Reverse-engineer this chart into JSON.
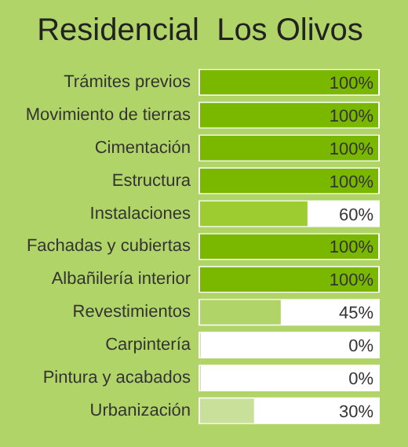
{
  "chart_data": {
    "type": "bar",
    "orientation": "horizontal",
    "title": "Residencial  Los Olivos",
    "categories": [
      "Trámites previos",
      "Movimiento de tierras",
      "Cimentación",
      "Estructura",
      "Instalaciones",
      "Fachadas y cubiertas",
      "Albañilería interior",
      "Revestimientos",
      "Carpintería",
      "Pintura y acabados",
      "Urbanización"
    ],
    "values": [
      100,
      100,
      100,
      100,
      60,
      100,
      100,
      45,
      0,
      0,
      30
    ],
    "colors": [
      "#7ab800",
      "#7ab800",
      "#7ab800",
      "#7ab800",
      "#9ccc30",
      "#7ab800",
      "#7ab800",
      "#b0d468",
      "#b0d468",
      "#b0d468",
      "#c8e09a"
    ],
    "value_labels": [
      "100%",
      "100%",
      "100%",
      "100%",
      "60%",
      "100%",
      "100%",
      "45%",
      "0%",
      "0%",
      "30%"
    ],
    "xlim": [
      0,
      100
    ],
    "tick_labels": "y",
    "grid": false,
    "legend": false
  }
}
